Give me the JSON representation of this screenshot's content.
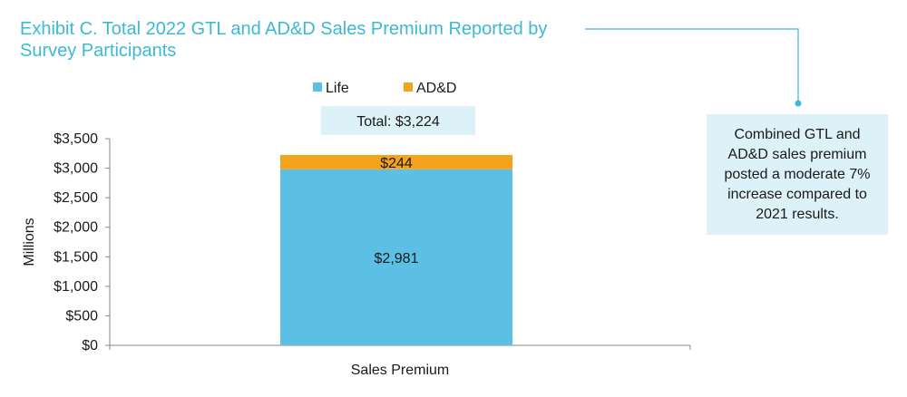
{
  "title": "Exhibit C. Total 2022 GTL and AD&D Sales Premium Reported by Survey Participants",
  "note": "Combined GTL and AD&D sales premium posted a moderate 7% increase compared to 2021 results.",
  "colors": {
    "life": "#5bc0e3",
    "add": "#f5a31b",
    "accent": "#3db8d6",
    "total_box": "#ddf1f9",
    "axis": "#888888"
  },
  "chart_data": {
    "type": "bar",
    "stacked": true,
    "categories": [
      "Sales Premium"
    ],
    "series": [
      {
        "name": "Life",
        "values": [
          2981
        ],
        "labels": [
          "$2,981"
        ]
      },
      {
        "name": "AD&D",
        "values": [
          244
        ],
        "labels": [
          "$244"
        ]
      }
    ],
    "total_label": "Total: $3,224",
    "xlabel": "Sales Premium",
    "ylabel": "Millions",
    "ylim": [
      0,
      3500
    ],
    "yticks": [
      0,
      500,
      1000,
      1500,
      2000,
      2500,
      3000,
      3500
    ],
    "ytick_labels": [
      "$0",
      "$500",
      "$1,000",
      "$1,500",
      "$2,000",
      "$2,500",
      "$3,000",
      "$3,500"
    ],
    "legend": "top",
    "grid": false
  }
}
